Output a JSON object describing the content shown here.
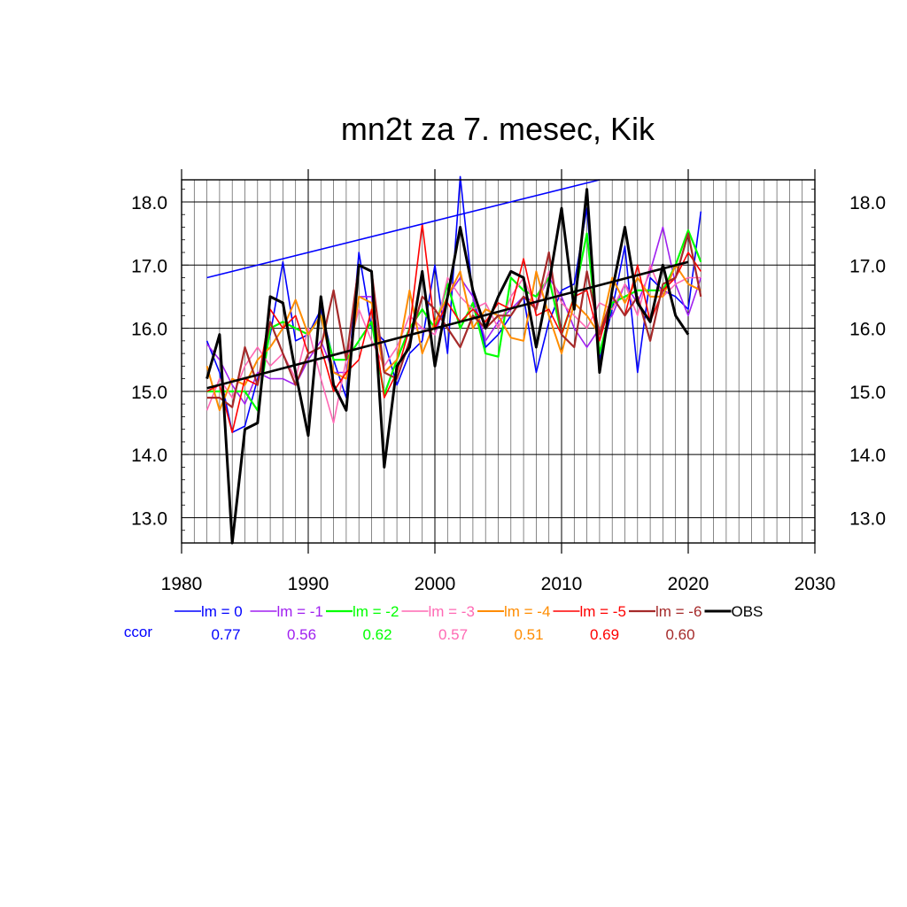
{
  "chart_data": {
    "type": "line",
    "title": "mn2t za 7. mesec, Kik",
    "xlim": [
      1980,
      2030
    ],
    "ylim": [
      12.6,
      18.35
    ],
    "x_ticks": [
      1980,
      1990,
      2000,
      2010,
      2020,
      2030
    ],
    "x_tick_labels": [
      "1980",
      "1990",
      "2000",
      "2010",
      "2020",
      "2030"
    ],
    "y_ticks": [
      13.0,
      14.0,
      15.0,
      16.0,
      17.0,
      18.0
    ],
    "y_tick_labels": [
      "13.0",
      "14.0",
      "15.0",
      "16.0",
      "17.0",
      "18.0"
    ],
    "grid": true,
    "legend_position": "bottom",
    "ccor_label": "ccor",
    "ccor_color": "#0000ff",
    "series": [
      {
        "name": "lm = 0",
        "color": "#0000ff",
        "width": 1.6,
        "ccor": "0.77",
        "x": [
          1982,
          1983,
          1984,
          1985,
          1986,
          1987,
          1988,
          1989,
          1990,
          1991,
          1992,
          1993,
          1994,
          1995,
          1996,
          1997,
          1998,
          1999,
          2000,
          2001,
          2002,
          2003,
          2004,
          2005,
          2006,
          2007,
          2008,
          2009,
          2010,
          2011,
          2012,
          2013,
          2014,
          2015,
          2016,
          2017,
          2018,
          2019,
          2020,
          2021
        ],
        "y": [
          15.8,
          15.3,
          14.35,
          14.45,
          15.2,
          15.9,
          17.05,
          15.8,
          15.9,
          16.3,
          15.5,
          14.9,
          17.2,
          16.0,
          15.8,
          15.1,
          15.6,
          15.8,
          17.0,
          15.6,
          18.4,
          16.5,
          15.7,
          15.9,
          16.2,
          16.5,
          15.3,
          16.1,
          16.6,
          16.7,
          17.9,
          15.5,
          16.3,
          17.3,
          15.3,
          16.8,
          16.6,
          16.5,
          16.3,
          17.85
        ]
      },
      {
        "name": "lm = -1",
        "color": "#a020f0",
        "width": 1.6,
        "ccor": "0.56",
        "x": [
          1982,
          1983,
          1984,
          1985,
          1986,
          1987,
          1988,
          1989,
          1990,
          1991,
          1992,
          1993,
          1994,
          1995,
          1996,
          1997,
          1998,
          1999,
          2000,
          2001,
          2002,
          2003,
          2004,
          2005,
          2006,
          2007,
          2008,
          2009,
          2010,
          2011,
          2012,
          2013,
          2014,
          2015,
          2016,
          2017,
          2018,
          2019,
          2020,
          2021
        ],
        "y": [
          15.75,
          15.5,
          15.1,
          14.8,
          15.3,
          15.2,
          15.2,
          15.1,
          15.5,
          15.8,
          15.3,
          15.3,
          16.5,
          16.5,
          15.3,
          15.5,
          16.0,
          16.0,
          15.9,
          16.5,
          16.8,
          16.5,
          15.8,
          16.1,
          16.3,
          16.5,
          16.4,
          16.8,
          16.5,
          16.0,
          15.7,
          16.0,
          16.2,
          16.7,
          16.4,
          16.9,
          17.6,
          16.7,
          16.2,
          16.8
        ]
      },
      {
        "name": "lm = -2",
        "color": "#00ff00",
        "width": 2.2,
        "ccor": "0.62",
        "x": [
          1982,
          1983,
          1984,
          1985,
          1986,
          1987,
          1988,
          1989,
          1990,
          1991,
          1992,
          1993,
          1994,
          1995,
          1996,
          1997,
          1998,
          1999,
          2000,
          2001,
          2002,
          2003,
          2004,
          2005,
          2006,
          2007,
          2008,
          2009,
          2010,
          2011,
          2012,
          2013,
          2014,
          2015,
          2016,
          2017,
          2018,
          2019,
          2020,
          2021
        ],
        "y": [
          15.0,
          15.0,
          15.0,
          15.0,
          14.7,
          16.0,
          16.1,
          16.0,
          15.9,
          16.2,
          15.5,
          15.5,
          15.8,
          16.1,
          14.95,
          15.5,
          16.0,
          16.3,
          16.0,
          16.7,
          16.0,
          16.4,
          15.6,
          15.55,
          16.8,
          16.6,
          16.5,
          16.8,
          15.9,
          16.5,
          17.5,
          15.6,
          16.4,
          16.5,
          16.6,
          16.6,
          16.6,
          17.0,
          17.55,
          17.05
        ]
      },
      {
        "name": "lm = -3",
        "color": "#ff69b4",
        "width": 1.6,
        "ccor": "0.57",
        "x": [
          1982,
          1983,
          1984,
          1985,
          1986,
          1987,
          1988,
          1989,
          1990,
          1991,
          1992,
          1993,
          1994,
          1995,
          1996,
          1997,
          1998,
          1999,
          2000,
          2001,
          2002,
          2003,
          2004,
          2005,
          2006,
          2007,
          2008,
          2009,
          2010,
          2011,
          2012,
          2013,
          2014,
          2015,
          2016,
          2017,
          2018,
          2019,
          2020,
          2021
        ],
        "y": [
          14.7,
          15.2,
          14.9,
          15.4,
          15.7,
          15.4,
          15.6,
          15.2,
          16.0,
          15.2,
          14.5,
          15.5,
          16.3,
          15.8,
          15.4,
          15.7,
          16.2,
          16.0,
          15.9,
          16.8,
          16.5,
          16.3,
          16.4,
          16.0,
          16.5,
          16.8,
          16.3,
          16.9,
          16.4,
          16.2,
          16.0,
          16.4,
          16.3,
          16.7,
          16.2,
          17.0,
          16.5,
          16.7,
          16.8,
          16.8
        ]
      },
      {
        "name": "lm = -4",
        "color": "#ff8c00",
        "width": 2.0,
        "ccor": "0.51",
        "x": [
          1982,
          1983,
          1984,
          1985,
          1986,
          1987,
          1988,
          1989,
          1990,
          1991,
          1992,
          1993,
          1994,
          1995,
          1996,
          1997,
          1998,
          1999,
          2000,
          2001,
          2002,
          2003,
          2004,
          2005,
          2006,
          2007,
          2008,
          2009,
          2010,
          2011,
          2012,
          2013,
          2014,
          2015,
          2016,
          2017,
          2018,
          2019,
          2020,
          2021
        ],
        "y": [
          15.4,
          14.7,
          15.2,
          15.1,
          15.5,
          15.7,
          16.0,
          16.45,
          15.9,
          16.2,
          15.3,
          15.2,
          16.5,
          16.4,
          15.3,
          15.5,
          16.6,
          15.6,
          16.1,
          16.5,
          16.9,
          16.0,
          16.3,
          16.2,
          15.85,
          15.8,
          16.9,
          16.2,
          15.6,
          16.4,
          16.2,
          15.9,
          16.8,
          16.4,
          16.8,
          16.5,
          16.5,
          17.0,
          16.7,
          16.6
        ]
      },
      {
        "name": "lm = -5",
        "color": "#ff0000",
        "width": 1.6,
        "ccor": "0.69",
        "x": [
          1982,
          1983,
          1984,
          1985,
          1986,
          1987,
          1988,
          1989,
          1990,
          1991,
          1992,
          1993,
          1994,
          1995,
          1996,
          1997,
          1998,
          1999,
          2000,
          2001,
          2002,
          2003,
          2004,
          2005,
          2006,
          2007,
          2008,
          2009,
          2010,
          2011,
          2012,
          2013,
          2014,
          2015,
          2016,
          2017,
          2018,
          2019,
          2020,
          2021
        ],
        "y": [
          15.0,
          15.1,
          14.35,
          15.2,
          15.1,
          16.3,
          16.0,
          16.2,
          15.6,
          15.7,
          15.0,
          15.3,
          15.5,
          16.3,
          14.9,
          15.3,
          16.0,
          17.65,
          16.0,
          16.4,
          16.1,
          16.3,
          16.1,
          16.4,
          16.3,
          17.1,
          16.2,
          16.3,
          15.9,
          16.5,
          16.6,
          15.8,
          16.5,
          16.2,
          17.0,
          16.1,
          16.6,
          16.8,
          17.2,
          16.9
        ]
      },
      {
        "name": "lm = -6",
        "color": "#a52a2a",
        "width": 2.2,
        "ccor": "0.60",
        "x": [
          1982,
          1983,
          1984,
          1985,
          1986,
          1987,
          1988,
          1989,
          1990,
          1991,
          1992,
          1993,
          1994,
          1995,
          1996,
          1997,
          1998,
          1999,
          2000,
          2001,
          2002,
          2003,
          2004,
          2005,
          2006,
          2007,
          2008,
          2009,
          2010,
          2011,
          2012,
          2013,
          2014,
          2015,
          2016,
          2017,
          2018,
          2019,
          2020,
          2021
        ],
        "y": [
          14.9,
          14.9,
          14.75,
          15.7,
          15.1,
          16.1,
          15.6,
          15.1,
          15.6,
          15.7,
          16.6,
          15.5,
          17.0,
          16.9,
          15.3,
          15.2,
          15.8,
          16.5,
          16.3,
          16.0,
          15.7,
          16.2,
          16.0,
          16.2,
          16.2,
          16.5,
          16.3,
          17.2,
          15.9,
          15.7,
          16.9,
          15.9,
          16.5,
          16.2,
          16.5,
          15.8,
          16.7,
          16.8,
          17.5,
          16.5
        ]
      },
      {
        "name": "OBS",
        "color": "#000000",
        "width": 3.0,
        "ccor": "",
        "x": [
          1982,
          1983,
          1984,
          1985,
          1986,
          1987,
          1988,
          1989,
          1990,
          1991,
          1992,
          1993,
          1994,
          1995,
          1996,
          1997,
          1998,
          1999,
          2000,
          2001,
          2002,
          2003,
          2004,
          2005,
          2006,
          2007,
          2008,
          2009,
          2010,
          2011,
          2012,
          2013,
          2014,
          2015,
          2016,
          2017,
          2018,
          2019,
          2020
        ],
        "y": [
          15.2,
          15.9,
          12.6,
          14.4,
          14.5,
          16.5,
          16.4,
          15.3,
          14.3,
          16.5,
          15.1,
          14.7,
          17.0,
          16.9,
          13.8,
          15.4,
          15.7,
          16.9,
          15.4,
          16.5,
          17.6,
          16.6,
          16.0,
          16.5,
          16.9,
          16.8,
          15.7,
          16.7,
          17.9,
          16.3,
          18.2,
          15.3,
          16.6,
          17.6,
          16.4,
          16.1,
          17.0,
          16.2,
          15.9
        ]
      }
    ],
    "trend_lines": [
      {
        "name": "lm = 0 trend",
        "color": "#0000ff",
        "width": 1.6,
        "x": [
          1982,
          2013
        ],
        "y": [
          16.8,
          18.35
        ]
      },
      {
        "name": "OBS trend",
        "color": "#000000",
        "width": 2.6,
        "x": [
          1982,
          2020
        ],
        "y": [
          15.05,
          17.05
        ]
      }
    ]
  }
}
